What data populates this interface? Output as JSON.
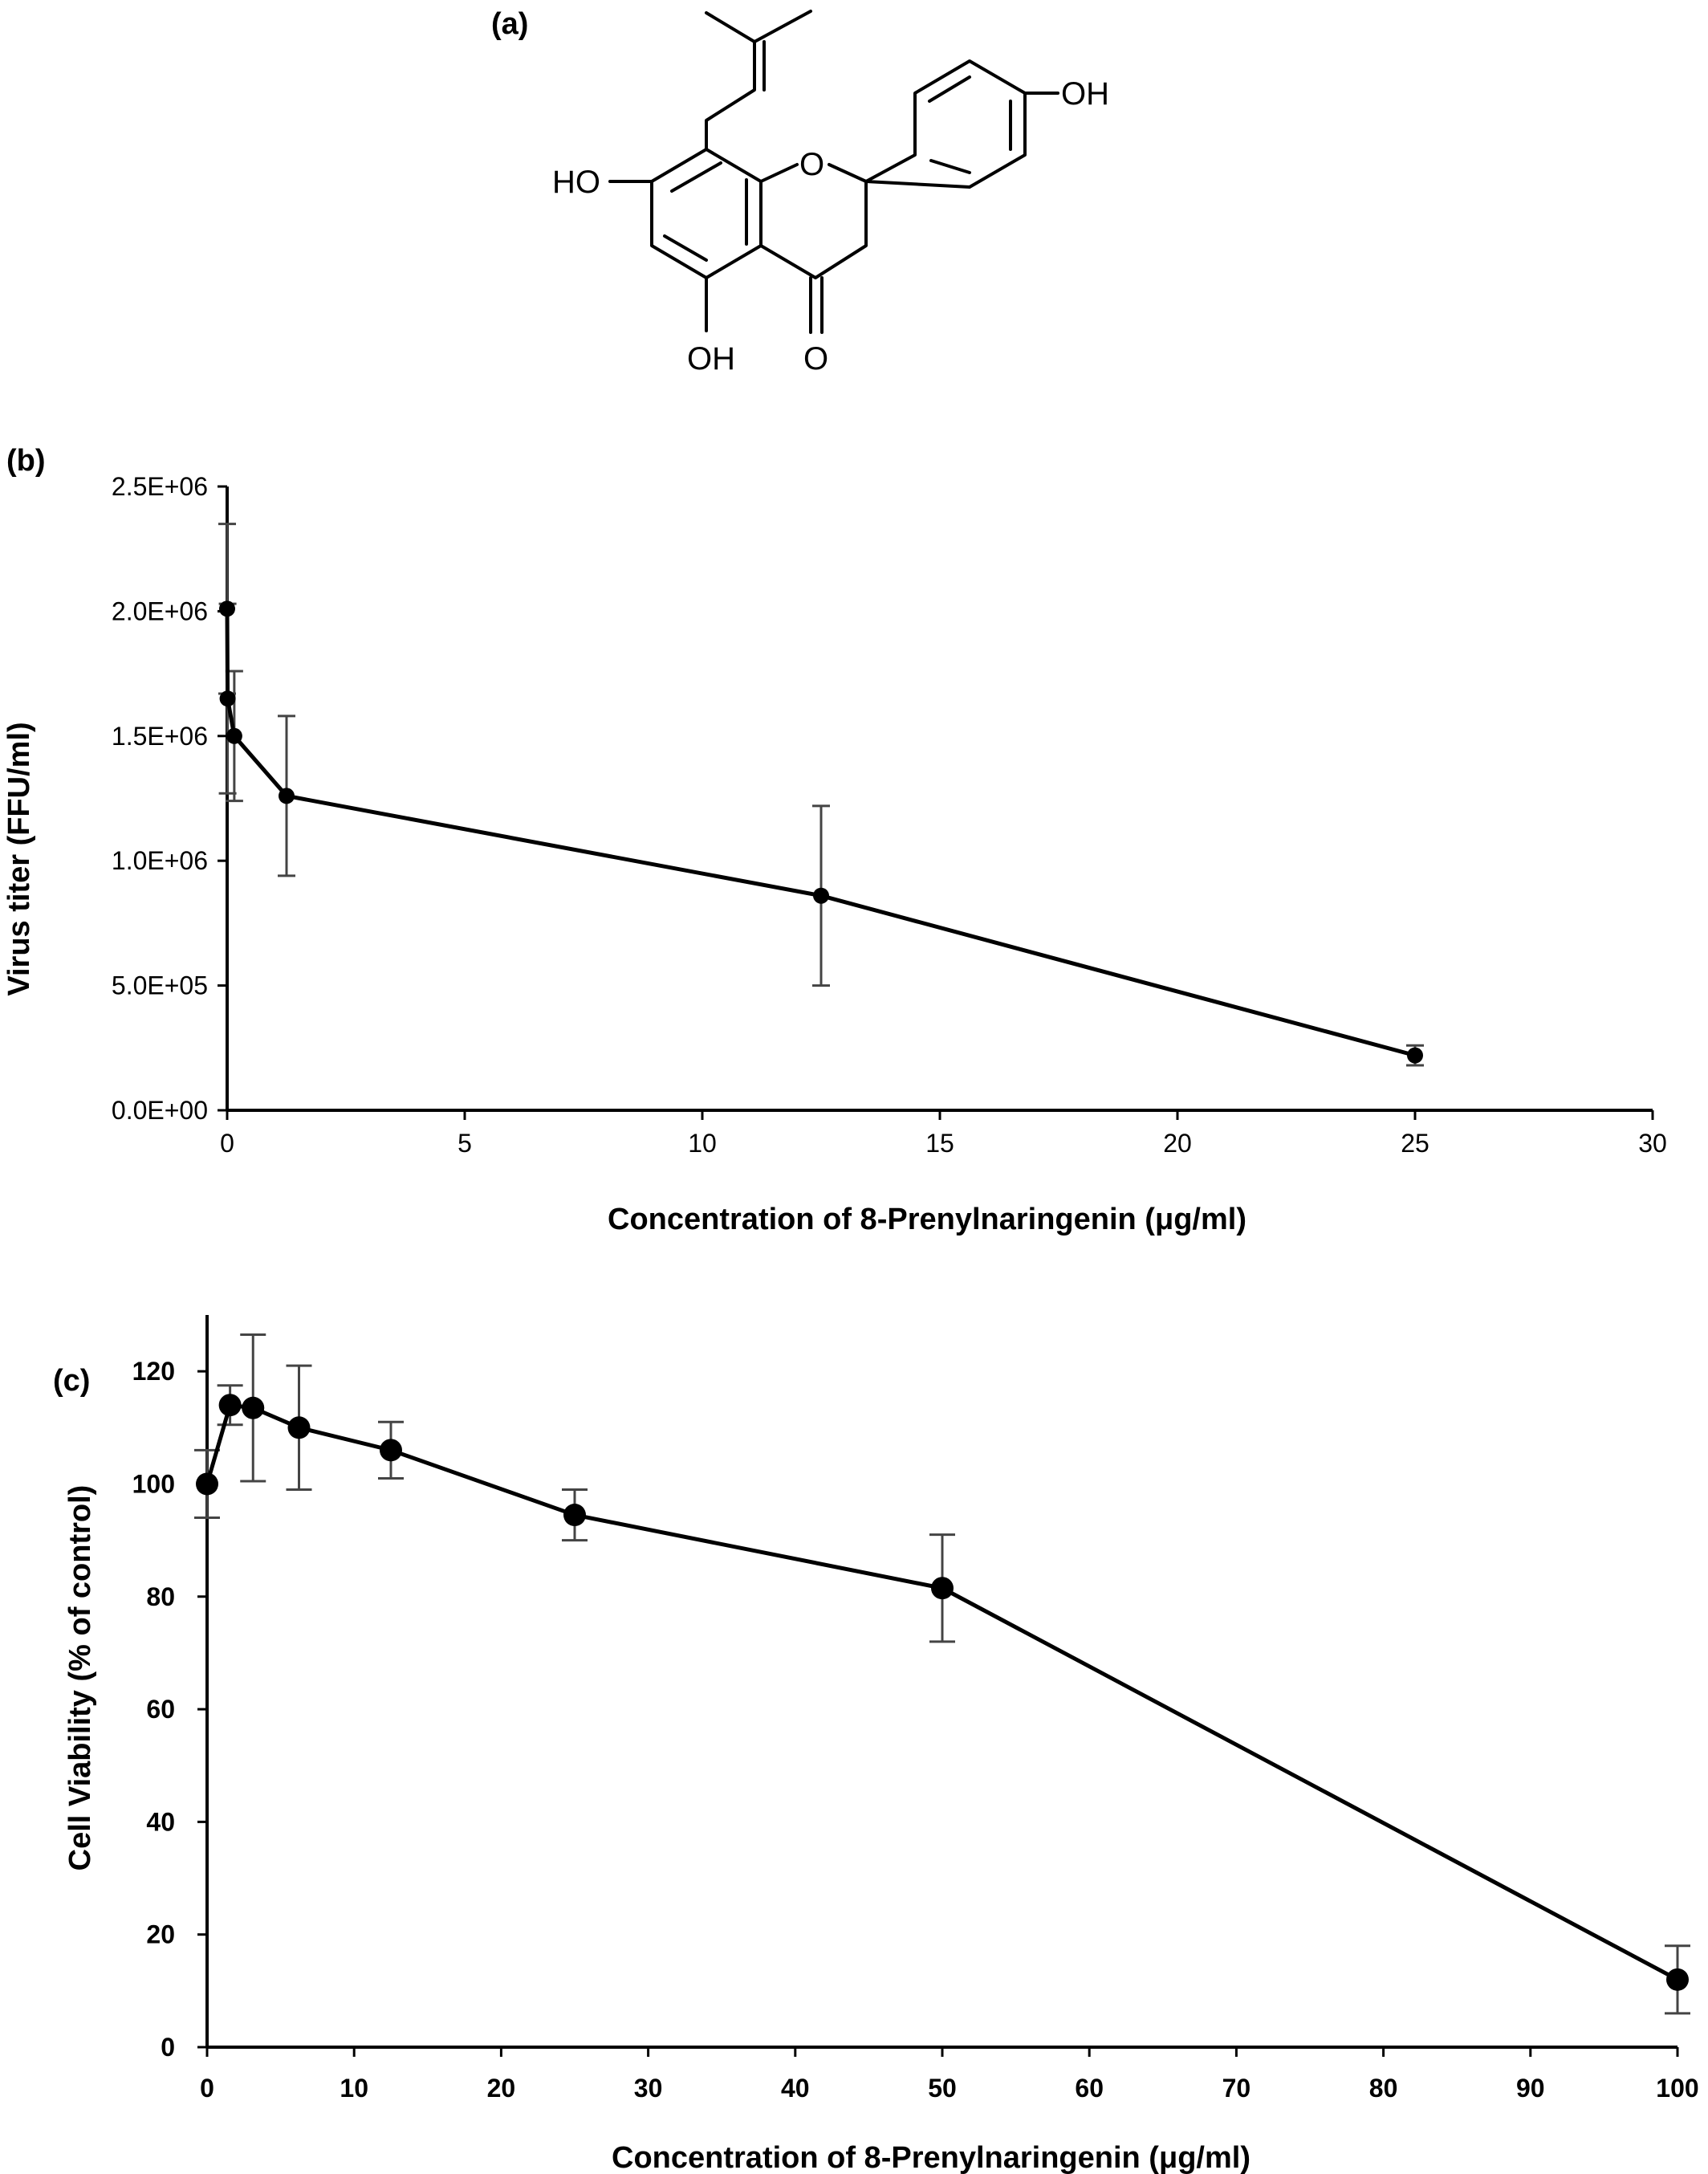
{
  "panel_a": {
    "label": "(a)",
    "atoms": {
      "oh_top": "OH",
      "ho_left": "HO",
      "ring_o": "O",
      "oh_bottom": "OH",
      "carbonyl_o": "O"
    }
  },
  "chart_data": [
    {
      "panel": "(b)",
      "type": "line",
      "xlabel": "Concentration of 8-Prenylnaringenin (μg/ml)",
      "ylabel": "Virus titer (FFU/ml)",
      "xlim": [
        0,
        30
      ],
      "ylim": [
        0,
        2500000
      ],
      "xticks": [
        0,
        5,
        10,
        15,
        20,
        25,
        30
      ],
      "xtick_labels": [
        "0",
        "5",
        "10",
        "15",
        "20",
        "25",
        "30"
      ],
      "yticks": [
        0,
        500000,
        1000000,
        1500000,
        2000000,
        2500000
      ],
      "ytick_labels": [
        "0.0E+00",
        "5.0E+05",
        "1.0E+06",
        "1.5E+06",
        "2.0E+06",
        "2.5E+06"
      ],
      "grid": false,
      "series": [
        {
          "x": [
            0,
            0.01,
            0.15,
            1.25,
            12.5,
            25
          ],
          "y": [
            2010000,
            1650000,
            1500000,
            1260000,
            860000,
            220000
          ],
          "err": [
            340000,
            380000,
            260000,
            320000,
            360000,
            40000
          ]
        }
      ]
    },
    {
      "panel": "(c)",
      "type": "line",
      "xlabel": "Concentration of 8-Prenylnaringenin (μg/ml)",
      "ylabel": "Cell Viability (% of control)",
      "xlim": [
        0,
        100
      ],
      "ylim": [
        0,
        130
      ],
      "xticks": [
        0,
        10,
        20,
        30,
        40,
        50,
        60,
        70,
        80,
        90,
        100
      ],
      "xtick_labels": [
        "0",
        "10",
        "20",
        "30",
        "40",
        "50",
        "60",
        "70",
        "80",
        "90",
        "100"
      ],
      "yticks": [
        0,
        20,
        40,
        60,
        80,
        100,
        120
      ],
      "ytick_labels": [
        "0",
        "20",
        "40",
        "60",
        "80",
        "100",
        "120"
      ],
      "grid": false,
      "series": [
        {
          "x": [
            0,
            1.5625,
            3.125,
            6.25,
            12.5,
            25,
            50,
            100
          ],
          "y": [
            100,
            114,
            113.5,
            110,
            106,
            94.5,
            81.5,
            12
          ],
          "err": [
            6,
            3.5,
            13,
            11,
            5,
            4.5,
            9.5,
            6
          ]
        }
      ]
    }
  ]
}
